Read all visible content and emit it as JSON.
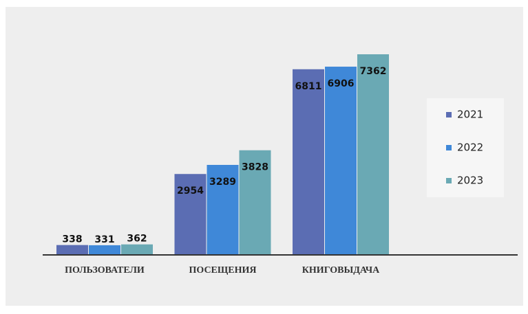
{
  "chart_data": {
    "type": "bar",
    "categories": [
      "ПОЛЬЗОВАТЕЛИ",
      "ПОСЕЩЕНИЯ",
      "КНИГОВЫДАЧА"
    ],
    "series": [
      {
        "name": "2021",
        "color": "#5b6db3",
        "values": [
          338,
          2954,
          6811
        ]
      },
      {
        "name": "2022",
        "color": "#3f88d8",
        "values": [
          331,
          3289,
          6906
        ]
      },
      {
        "name": "2023",
        "color": "#6aa9b4",
        "values": [
          362,
          3828,
          7362
        ]
      }
    ],
    "legend": "right"
  }
}
